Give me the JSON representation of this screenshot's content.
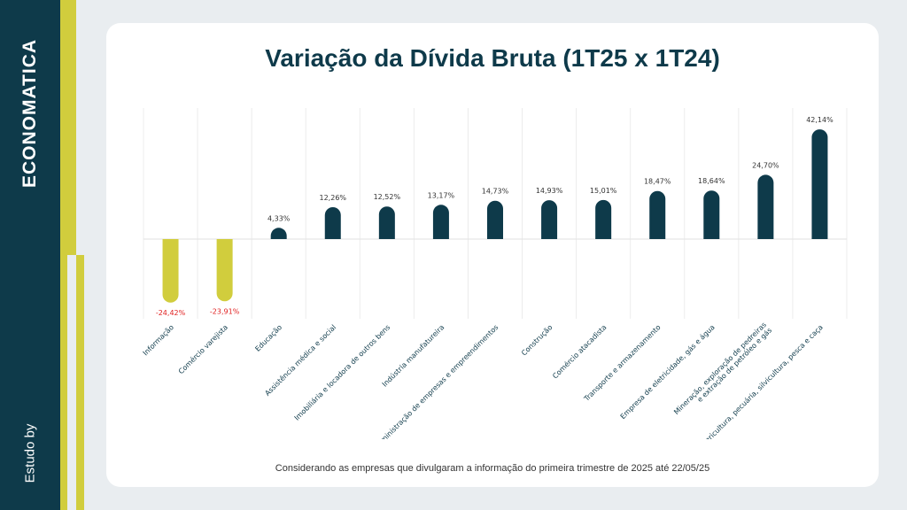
{
  "brand": {
    "logo_text": "ECONOMATICA",
    "study_label": "Estudo by"
  },
  "colors": {
    "positive": "#0e3a4a",
    "negative": "#d1cd3d",
    "negative_label": "#e02020",
    "sidebar": "#0e3a4a"
  },
  "footnote": "Considerando as empresas que divulgaram a informação do primeira trimestre de 2025 até 22/05/25",
  "chart_data": {
    "type": "bar",
    "title": "Variação da Dívida Bruta (1T25 x 1T24)",
    "categories": [
      "Informação",
      "Comércio varejista",
      "Educação",
      "Assistência médica e social",
      "Imobiliária e locadora de outros bens",
      "Indústria manufatureira",
      "Administração de empresas e empreendimentos",
      "Construção",
      "Comércio atacadista",
      "Transporte e armazenamento",
      "Empresa de eletricidade, gás e água",
      "Mineração, exploração de pedreiras e extração de petróleo e gás",
      "Agricultura, pecuária, silvicultura, pesca e caça"
    ],
    "values": [
      -24.42,
      -23.91,
      4.33,
      12.26,
      12.52,
      13.17,
      14.73,
      14.93,
      15.01,
      18.47,
      18.64,
      24.7,
      42.14
    ],
    "data_labels": [
      "-24,42%",
      "-23,91%",
      "4,33%",
      "12,26%",
      "12,52%",
      "13,17%",
      "14,73%",
      "14,93%",
      "15,01%",
      "18,47%",
      "18,64%",
      "24,70%",
      "42,14%"
    ],
    "ylim": [
      -30,
      50
    ],
    "grid": "vertical",
    "legend": "none"
  }
}
